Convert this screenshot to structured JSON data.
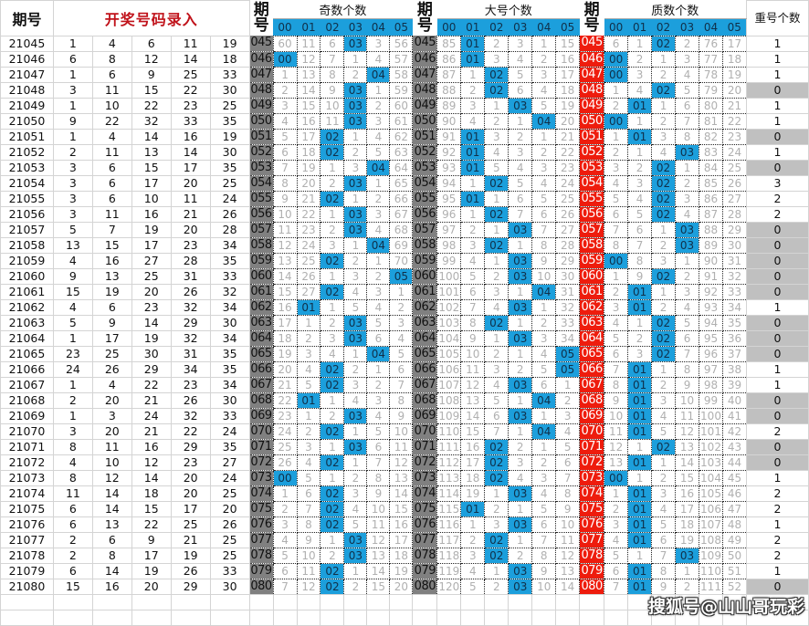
{
  "header": {
    "period_label": "期号",
    "entry_label": "开奖号码录入",
    "period_short_label": "期号",
    "groups": [
      {
        "title": "奇数个数",
        "cols": [
          "00",
          "01",
          "02",
          "03",
          "04",
          "05"
        ]
      },
      {
        "title": "大号个数",
        "cols": [
          "00",
          "01",
          "02",
          "03",
          "04",
          "05"
        ]
      },
      {
        "title": "质数个数",
        "cols": [
          "00",
          "01",
          "02",
          "03",
          "04",
          "05"
        ]
      }
    ],
    "repeat_label": "重号个数"
  },
  "colors": {
    "hit": "#1c9fdc",
    "period_grey": "#808080",
    "period_red": "#ee1c0d",
    "entry_title": "#c0121a",
    "repeat_zero_bg": "#c0c0c0"
  },
  "rows": [
    {
      "period": "21045",
      "nums": [
        "1",
        "4",
        "6",
        "11",
        "19"
      ],
      "short": "045",
      "odd": [
        "60",
        "11",
        "6",
        "03",
        "3",
        "56"
      ],
      "big": [
        "85",
        "01",
        "2",
        "3",
        "1",
        "15"
      ],
      "prime": [
        "6",
        "1",
        "02",
        "2",
        "76",
        "17"
      ],
      "repeat": "1"
    },
    {
      "period": "21046",
      "nums": [
        "6",
        "8",
        "12",
        "14",
        "18"
      ],
      "short": "046",
      "odd": [
        "00",
        "12",
        "7",
        "1",
        "4",
        "57"
      ],
      "big": [
        "86",
        "01",
        "3",
        "4",
        "2",
        "16"
      ],
      "prime": [
        "00",
        "2",
        "1",
        "3",
        "77",
        "18"
      ],
      "repeat": "1"
    },
    {
      "period": "21047",
      "nums": [
        "1",
        "6",
        "9",
        "25",
        "33"
      ],
      "short": "047",
      "odd": [
        "1",
        "13",
        "8",
        "2",
        "04",
        "58"
      ],
      "big": [
        "87",
        "1",
        "02",
        "5",
        "3",
        "17"
      ],
      "prime": [
        "00",
        "3",
        "2",
        "4",
        "78",
        "19"
      ],
      "repeat": "1"
    },
    {
      "period": "21048",
      "nums": [
        "3",
        "11",
        "15",
        "22",
        "30"
      ],
      "short": "048",
      "odd": [
        "2",
        "14",
        "9",
        "03",
        "1",
        "59"
      ],
      "big": [
        "88",
        "2",
        "02",
        "6",
        "4",
        "18"
      ],
      "prime": [
        "1",
        "4",
        "02",
        "5",
        "79",
        "20"
      ],
      "repeat": "0"
    },
    {
      "period": "21049",
      "nums": [
        "1",
        "10",
        "22",
        "23",
        "25"
      ],
      "short": "049",
      "odd": [
        "3",
        "15",
        "10",
        "03",
        "2",
        "60"
      ],
      "big": [
        "89",
        "3",
        "1",
        "03",
        "5",
        "19"
      ],
      "prime": [
        "2",
        "01",
        "1",
        "6",
        "80",
        "21"
      ],
      "repeat": "1"
    },
    {
      "period": "21050",
      "nums": [
        "9",
        "22",
        "32",
        "33",
        "35"
      ],
      "short": "050",
      "odd": [
        "4",
        "16",
        "11",
        "03",
        "3",
        "61"
      ],
      "big": [
        "90",
        "4",
        "2",
        "1",
        "04",
        "20"
      ],
      "prime": [
        "00",
        "1",
        "2",
        "7",
        "81",
        "22"
      ],
      "repeat": "1"
    },
    {
      "period": "21051",
      "nums": [
        "1",
        "4",
        "14",
        "16",
        "19"
      ],
      "short": "051",
      "odd": [
        "5",
        "17",
        "02",
        "1",
        "4",
        "62"
      ],
      "big": [
        "91",
        "01",
        "3",
        "2",
        "1",
        "21"
      ],
      "prime": [
        "1",
        "01",
        "3",
        "8",
        "82",
        "23"
      ],
      "repeat": "0"
    },
    {
      "period": "21052",
      "nums": [
        "2",
        "11",
        "13",
        "14",
        "30"
      ],
      "short": "052",
      "odd": [
        "6",
        "18",
        "02",
        "2",
        "5",
        "63"
      ],
      "big": [
        "92",
        "01",
        "4",
        "3",
        "2",
        "22"
      ],
      "prime": [
        "2",
        "1",
        "4",
        "03",
        "83",
        "24"
      ],
      "repeat": "1"
    },
    {
      "period": "21053",
      "nums": [
        "3",
        "6",
        "15",
        "17",
        "35"
      ],
      "short": "053",
      "odd": [
        "7",
        "19",
        "1",
        "3",
        "04",
        "64"
      ],
      "big": [
        "93",
        "01",
        "5",
        "4",
        "3",
        "23"
      ],
      "prime": [
        "3",
        "2",
        "02",
        "1",
        "84",
        "25"
      ],
      "repeat": "0"
    },
    {
      "period": "21054",
      "nums": [
        "3",
        "6",
        "17",
        "20",
        "25"
      ],
      "short": "054",
      "odd": [
        "8",
        "20",
        "2",
        "03",
        "1",
        "65"
      ],
      "big": [
        "94",
        "1",
        "02",
        "5",
        "4",
        "24"
      ],
      "prime": [
        "4",
        "3",
        "02",
        "2",
        "85",
        "26"
      ],
      "repeat": "3"
    },
    {
      "period": "21055",
      "nums": [
        "3",
        "6",
        "10",
        "11",
        "24"
      ],
      "short": "055",
      "odd": [
        "9",
        "21",
        "02",
        "1",
        "2",
        "66"
      ],
      "big": [
        "95",
        "01",
        "1",
        "6",
        "5",
        "25"
      ],
      "prime": [
        "5",
        "4",
        "02",
        "3",
        "86",
        "27"
      ],
      "repeat": "2"
    },
    {
      "period": "21056",
      "nums": [
        "3",
        "11",
        "16",
        "21",
        "26"
      ],
      "short": "056",
      "odd": [
        "10",
        "22",
        "1",
        "03",
        "3",
        "67"
      ],
      "big": [
        "96",
        "1",
        "02",
        "7",
        "6",
        "26"
      ],
      "prime": [
        "6",
        "5",
        "02",
        "4",
        "87",
        "28"
      ],
      "repeat": "2"
    },
    {
      "period": "21057",
      "nums": [
        "5",
        "7",
        "19",
        "20",
        "28"
      ],
      "short": "057",
      "odd": [
        "11",
        "23",
        "2",
        "03",
        "4",
        "68"
      ],
      "big": [
        "97",
        "2",
        "1",
        "03",
        "7",
        "27"
      ],
      "prime": [
        "7",
        "6",
        "1",
        "03",
        "88",
        "29"
      ],
      "repeat": "0"
    },
    {
      "period": "21058",
      "nums": [
        "13",
        "15",
        "17",
        "23",
        "34"
      ],
      "short": "058",
      "odd": [
        "12",
        "24",
        "3",
        "1",
        "04",
        "69"
      ],
      "big": [
        "98",
        "3",
        "02",
        "1",
        "8",
        "28"
      ],
      "prime": [
        "8",
        "7",
        "2",
        "03",
        "89",
        "30"
      ],
      "repeat": "0"
    },
    {
      "period": "21059",
      "nums": [
        "4",
        "16",
        "27",
        "28",
        "35"
      ],
      "short": "059",
      "odd": [
        "13",
        "25",
        "02",
        "2",
        "1",
        "70"
      ],
      "big": [
        "99",
        "4",
        "1",
        "03",
        "9",
        "29"
      ],
      "prime": [
        "00",
        "8",
        "3",
        "1",
        "90",
        "31"
      ],
      "repeat": "0"
    },
    {
      "period": "21060",
      "nums": [
        "9",
        "13",
        "25",
        "31",
        "33"
      ],
      "short": "060",
      "odd": [
        "14",
        "26",
        "1",
        "3",
        "2",
        "05"
      ],
      "big": [
        "100",
        "5",
        "2",
        "03",
        "10",
        "30"
      ],
      "prime": [
        "1",
        "9",
        "02",
        "2",
        "91",
        "32"
      ],
      "repeat": "0"
    },
    {
      "period": "21061",
      "nums": [
        "15",
        "19",
        "20",
        "26",
        "32"
      ],
      "short": "061",
      "odd": [
        "15",
        "27",
        "02",
        "4",
        "3",
        "1"
      ],
      "big": [
        "101",
        "6",
        "3",
        "1",
        "04",
        "31"
      ],
      "prime": [
        "2",
        "01",
        "1",
        "3",
        "92",
        "33"
      ],
      "repeat": "0"
    },
    {
      "period": "21062",
      "nums": [
        "4",
        "6",
        "23",
        "32",
        "34"
      ],
      "short": "062",
      "odd": [
        "16",
        "01",
        "1",
        "5",
        "4",
        "2"
      ],
      "big": [
        "102",
        "7",
        "4",
        "03",
        "1",
        "32"
      ],
      "prime": [
        "3",
        "01",
        "2",
        "4",
        "93",
        "34"
      ],
      "repeat": "1"
    },
    {
      "period": "21063",
      "nums": [
        "5",
        "9",
        "14",
        "29",
        "30"
      ],
      "short": "063",
      "odd": [
        "17",
        "1",
        "2",
        "03",
        "5",
        "3"
      ],
      "big": [
        "103",
        "8",
        "02",
        "1",
        "2",
        "33"
      ],
      "prime": [
        "4",
        "1",
        "02",
        "5",
        "94",
        "35"
      ],
      "repeat": "0"
    },
    {
      "period": "21064",
      "nums": [
        "1",
        "17",
        "19",
        "32",
        "34"
      ],
      "short": "064",
      "odd": [
        "18",
        "2",
        "3",
        "03",
        "6",
        "4"
      ],
      "big": [
        "104",
        "9",
        "1",
        "03",
        "3",
        "34"
      ],
      "prime": [
        "5",
        "2",
        "02",
        "6",
        "95",
        "36"
      ],
      "repeat": "0"
    },
    {
      "period": "21065",
      "nums": [
        "23",
        "25",
        "30",
        "31",
        "35"
      ],
      "short": "065",
      "odd": [
        "19",
        "3",
        "4",
        "1",
        "04",
        "5"
      ],
      "big": [
        "105",
        "10",
        "2",
        "1",
        "4",
        "05"
      ],
      "prime": [
        "6",
        "3",
        "02",
        "7",
        "96",
        "37"
      ],
      "repeat": "0"
    },
    {
      "period": "21066",
      "nums": [
        "24",
        "26",
        "29",
        "34",
        "35"
      ],
      "short": "066",
      "odd": [
        "20",
        "4",
        "02",
        "2",
        "1",
        "6"
      ],
      "big": [
        "106",
        "11",
        "3",
        "2",
        "5",
        "05"
      ],
      "prime": [
        "7",
        "01",
        "1",
        "8",
        "97",
        "38"
      ],
      "repeat": "1"
    },
    {
      "period": "21067",
      "nums": [
        "1",
        "4",
        "22",
        "23",
        "34"
      ],
      "short": "067",
      "odd": [
        "21",
        "5",
        "02",
        "3",
        "2",
        "7"
      ],
      "big": [
        "107",
        "12",
        "4",
        "03",
        "6",
        "1"
      ],
      "prime": [
        "8",
        "01",
        "2",
        "9",
        "98",
        "39"
      ],
      "repeat": "1"
    },
    {
      "period": "21068",
      "nums": [
        "2",
        "20",
        "21",
        "26",
        "30"
      ],
      "short": "068",
      "odd": [
        "22",
        "01",
        "1",
        "4",
        "3",
        "8"
      ],
      "big": [
        "108",
        "13",
        "5",
        "1",
        "04",
        "2"
      ],
      "prime": [
        "9",
        "01",
        "3",
        "10",
        "99",
        "40"
      ],
      "repeat": "0"
    },
    {
      "period": "21069",
      "nums": [
        "1",
        "3",
        "24",
        "32",
        "33"
      ],
      "short": "069",
      "odd": [
        "23",
        "1",
        "2",
        "03",
        "4",
        "9"
      ],
      "big": [
        "109",
        "14",
        "6",
        "03",
        "1",
        "3"
      ],
      "prime": [
        "10",
        "01",
        "4",
        "11",
        "100",
        "41"
      ],
      "repeat": "0"
    },
    {
      "period": "21070",
      "nums": [
        "3",
        "20",
        "21",
        "22",
        "24"
      ],
      "short": "070",
      "odd": [
        "24",
        "2",
        "02",
        "1",
        "5",
        "10"
      ],
      "big": [
        "110",
        "15",
        "7",
        "1",
        "04",
        "4"
      ],
      "prime": [
        "11",
        "01",
        "5",
        "12",
        "101",
        "42"
      ],
      "repeat": "2"
    },
    {
      "period": "21071",
      "nums": [
        "8",
        "11",
        "16",
        "29",
        "35"
      ],
      "short": "071",
      "odd": [
        "25",
        "3",
        "1",
        "03",
        "6",
        "11"
      ],
      "big": [
        "111",
        "16",
        "02",
        "2",
        "1",
        "5"
      ],
      "prime": [
        "12",
        "1",
        "02",
        "13",
        "102",
        "43"
      ],
      "repeat": "0"
    },
    {
      "period": "21072",
      "nums": [
        "4",
        "10",
        "12",
        "23",
        "27"
      ],
      "short": "072",
      "odd": [
        "26",
        "4",
        "02",
        "1",
        "7",
        "12"
      ],
      "big": [
        "112",
        "17",
        "02",
        "3",
        "2",
        "6"
      ],
      "prime": [
        "13",
        "01",
        "1",
        "14",
        "103",
        "44"
      ],
      "repeat": "0"
    },
    {
      "period": "21073",
      "nums": [
        "8",
        "12",
        "14",
        "20",
        "24"
      ],
      "short": "073",
      "odd": [
        "00",
        "5",
        "1",
        "2",
        "8",
        "13"
      ],
      "big": [
        "113",
        "18",
        "02",
        "4",
        "3",
        "7"
      ],
      "prime": [
        "00",
        "1",
        "2",
        "15",
        "104",
        "45"
      ],
      "repeat": "1"
    },
    {
      "period": "21074",
      "nums": [
        "11",
        "14",
        "18",
        "20",
        "25"
      ],
      "short": "074",
      "odd": [
        "1",
        "6",
        "02",
        "3",
        "9",
        "14"
      ],
      "big": [
        "114",
        "19",
        "1",
        "03",
        "4",
        "8"
      ],
      "prime": [
        "1",
        "01",
        "3",
        "16",
        "105",
        "46"
      ],
      "repeat": "2"
    },
    {
      "period": "21075",
      "nums": [
        "6",
        "14",
        "15",
        "17",
        "20"
      ],
      "short": "075",
      "odd": [
        "2",
        "7",
        "02",
        "4",
        "10",
        "15"
      ],
      "big": [
        "115",
        "01",
        "2",
        "1",
        "5",
        "9"
      ],
      "prime": [
        "2",
        "01",
        "4",
        "17",
        "106",
        "47"
      ],
      "repeat": "2"
    },
    {
      "period": "21076",
      "nums": [
        "6",
        "13",
        "22",
        "25",
        "26"
      ],
      "short": "076",
      "odd": [
        "3",
        "8",
        "02",
        "5",
        "11",
        "16"
      ],
      "big": [
        "116",
        "1",
        "3",
        "03",
        "6",
        "10"
      ],
      "prime": [
        "3",
        "01",
        "5",
        "18",
        "107",
        "48"
      ],
      "repeat": "1"
    },
    {
      "period": "21077",
      "nums": [
        "2",
        "6",
        "9",
        "21",
        "25"
      ],
      "short": "077",
      "odd": [
        "4",
        "9",
        "1",
        "03",
        "12",
        "17"
      ],
      "big": [
        "117",
        "2",
        "02",
        "1",
        "7",
        "11"
      ],
      "prime": [
        "4",
        "01",
        "6",
        "19",
        "108",
        "49"
      ],
      "repeat": "2"
    },
    {
      "period": "21078",
      "nums": [
        "2",
        "8",
        "17",
        "19",
        "25"
      ],
      "short": "078",
      "odd": [
        "5",
        "10",
        "2",
        "03",
        "13",
        "18"
      ],
      "big": [
        "118",
        "3",
        "02",
        "2",
        "8",
        "12"
      ],
      "prime": [
        "5",
        "1",
        "7",
        "03",
        "109",
        "50"
      ],
      "repeat": "2"
    },
    {
      "period": "21079",
      "nums": [
        "6",
        "14",
        "19",
        "26",
        "33"
      ],
      "short": "079",
      "odd": [
        "6",
        "11",
        "02",
        "1",
        "14",
        "19"
      ],
      "big": [
        "119",
        "4",
        "1",
        "03",
        "9",
        "13"
      ],
      "prime": [
        "6",
        "01",
        "8",
        "1",
        "110",
        "51"
      ],
      "repeat": "1"
    },
    {
      "period": "21080",
      "nums": [
        "15",
        "16",
        "20",
        "29",
        "30"
      ],
      "short": "080",
      "odd": [
        "7",
        "12",
        "02",
        "2",
        "15",
        "20"
      ],
      "big": [
        "120",
        "5",
        "2",
        "03",
        "10",
        "14"
      ],
      "prime": [
        "7",
        "01",
        "9",
        "2",
        "111",
        "52"
      ],
      "repeat": "0"
    }
  ],
  "watermark": "搜狐号@山山哥玩彩"
}
